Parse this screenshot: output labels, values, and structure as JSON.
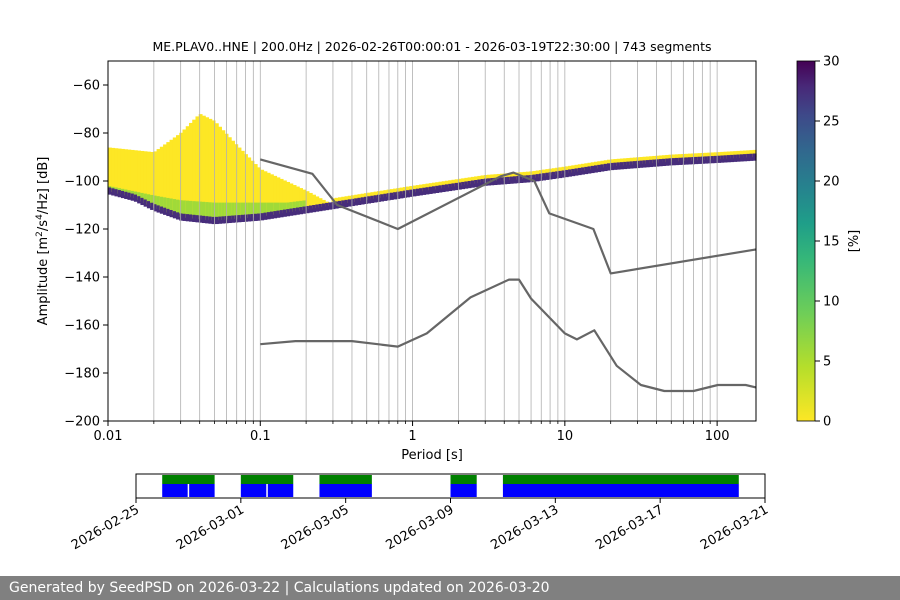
{
  "chart_data": [
    {
      "type": "heatmap",
      "title": "ME.PLAV0..HNE | 200.0Hz | 2026-02-26T00:00:01 - 2026-03-19T22:30:00 | 743 segments",
      "xlabel": "Period [s]",
      "ylabel_main": "Amplitude [m",
      "ylabel_units": [
        "2",
        "/s",
        "4",
        "/Hz] [dB]"
      ],
      "x_scale": "log",
      "xlim": [
        0.01,
        180
      ],
      "ylim": [
        -200,
        -50
      ],
      "x_ticks": [
        {
          "v": 0.01,
          "label": "0.01"
        },
        {
          "v": 0.1,
          "label": "0.1"
        },
        {
          "v": 1,
          "label": "1"
        },
        {
          "v": 10,
          "label": "10"
        },
        {
          "v": 100,
          "label": "100"
        }
      ],
      "y_ticks": [
        {
          "v": -60,
          "label": "−60"
        },
        {
          "v": -80,
          "label": "−80"
        },
        {
          "v": -100,
          "label": "−100"
        },
        {
          "v": -120,
          "label": "−120"
        },
        {
          "v": -140,
          "label": "−140"
        },
        {
          "v": -160,
          "label": "−160"
        },
        {
          "v": -180,
          "label": "−180"
        },
        {
          "v": -200,
          "label": "−200"
        }
      ],
      "grid": "vertical-log",
      "colorbar": {
        "label": "[%]",
        "range": [
          0,
          30
        ],
        "ticks": [
          {
            "v": 0,
            "label": "0"
          },
          {
            "v": 5,
            "label": "5"
          },
          {
            "v": 10,
            "label": "10"
          },
          {
            "v": 15,
            "label": "15"
          },
          {
            "v": 20,
            "label": "20"
          },
          {
            "v": 25,
            "label": "25"
          },
          {
            "v": 30,
            "label": "30"
          }
        ],
        "colormap": "viridis-reversed"
      },
      "series": [
        {
          "role": "noise-model-high",
          "points": [
            [
              0.1,
              -91
            ],
            [
              0.22,
              -97
            ],
            [
              0.32,
              -110
            ],
            [
              0.8,
              -120
            ],
            [
              3.8,
              -98
            ],
            [
              4.6,
              -96.5
            ],
            [
              6.3,
              -100
            ],
            [
              7.9,
              -113.5
            ],
            [
              15.4,
              -120
            ],
            [
              20,
              -138.5
            ],
            [
              180,
              -128.5
            ]
          ]
        },
        {
          "role": "noise-model-low",
          "points": [
            [
              0.1,
              -168
            ],
            [
              0.17,
              -166.7
            ],
            [
              0.4,
              -166.7
            ],
            [
              0.8,
              -169
            ],
            [
              1.24,
              -163.5
            ],
            [
              2.4,
              -148.5
            ],
            [
              4.3,
              -141.1
            ],
            [
              5,
              -141.1
            ],
            [
              6,
              -149
            ],
            [
              10,
              -163.5
            ],
            [
              12,
              -166
            ],
            [
              15.6,
              -162.2
            ],
            [
              21.9,
              -177
            ],
            [
              31.6,
              -185
            ],
            [
              45,
              -187.5
            ],
            [
              70,
              -187.5
            ],
            [
              101,
              -185
            ],
            [
              154,
              -185
            ],
            [
              180,
              -186
            ]
          ]
        }
      ],
      "density_bands": [
        {
          "comment": "dark high-percentage ridge",
          "percent": 28,
          "points": [
            [
              0.01,
              -104
            ],
            [
              0.015,
              -107
            ],
            [
              0.02,
              -111
            ],
            [
              0.03,
              -115
            ],
            [
              0.05,
              -116.5
            ],
            [
              0.1,
              -115
            ],
            [
              0.2,
              -112
            ],
            [
              0.5,
              -108
            ],
            [
              1,
              -105
            ],
            [
              3,
              -100.5
            ],
            [
              6,
              -99
            ],
            [
              10,
              -97
            ],
            [
              20,
              -94
            ],
            [
              50,
              -92
            ],
            [
              100,
              -91
            ],
            [
              180,
              -90
            ]
          ]
        },
        {
          "comment": "green band",
          "percent": 8,
          "points": [
            [
              0.01,
              -104
            ],
            [
              0.02,
              -108
            ],
            [
              0.03,
              -110
            ],
            [
              0.05,
              -111
            ],
            [
              0.1,
              -111
            ],
            [
              0.15,
              -111
            ],
            [
              0.2,
              -110
            ]
          ]
        },
        {
          "comment": "upper yellow cloud",
          "percent": 1,
          "points": [
            [
              0.01,
              -86
            ],
            [
              0.02,
              -88
            ],
            [
              0.03,
              -80
            ],
            [
              0.04,
              -72
            ],
            [
              0.05,
              -75
            ],
            [
              0.07,
              -85
            ],
            [
              0.1,
              -95
            ],
            [
              0.2,
              -104
            ],
            [
              0.3,
              -110
            ]
          ]
        }
      ]
    },
    {
      "type": "bar",
      "comment": "data availability timeline",
      "x_ticks": [
        {
          "v": "2026-02-25",
          "label": "2026-02-25"
        },
        {
          "v": "2026-03-01",
          "label": "2026-03-01"
        },
        {
          "v": "2026-03-05",
          "label": "2026-03-05"
        },
        {
          "v": "2026-03-09",
          "label": "2026-03-09"
        },
        {
          "v": "2026-03-13",
          "label": "2026-03-13"
        },
        {
          "v": "2026-03-17",
          "label": "2026-03-17"
        },
        {
          "v": "2026-03-21",
          "label": "2026-03-21"
        }
      ],
      "xlim": [
        "2026-02-25T00:00",
        "2026-03-21T00:00"
      ],
      "colors": {
        "upper": "#008000",
        "lower": "#0000ff"
      },
      "segments": [
        {
          "start": "2026-02-26T00:00",
          "end": "2026-02-28T00:00"
        },
        {
          "start": "2026-03-01T00:00",
          "end": "2026-03-03T00:00"
        },
        {
          "start": "2026-03-04T00:00",
          "end": "2026-03-06T00:00"
        },
        {
          "start": "2026-03-09T00:00",
          "end": "2026-03-10T00:00"
        },
        {
          "start": "2026-03-11T00:00",
          "end": "2026-03-20T00:00"
        }
      ],
      "gaps_in_lower": [
        "2026-02-27T00:00",
        "2026-03-02T00:00"
      ]
    }
  ],
  "footer": {
    "text": "Generated by SeedPSD on 2026-03-22 | Calculations updated on 2026-03-20"
  }
}
